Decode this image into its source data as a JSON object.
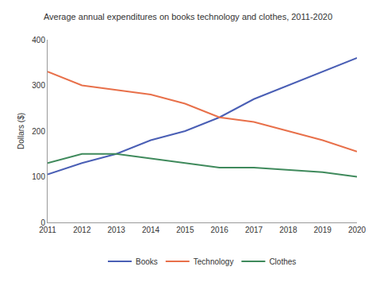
{
  "chart_data": {
    "type": "line",
    "title": "Average annual expenditures on books technology and clothes, 2011-2020",
    "y_label": "Dollars ($)",
    "categories": [
      "2011",
      "2012",
      "2013",
      "2014",
      "2015",
      "2016",
      "2017",
      "2018",
      "2019",
      "2020"
    ],
    "series": [
      {
        "name": "Books",
        "color": "#4a5fb5",
        "values": [
          105,
          130,
          150,
          180,
          200,
          230,
          270,
          300,
          330,
          360
        ]
      },
      {
        "name": "Technology",
        "color": "#e8704a",
        "values": [
          330,
          300,
          290,
          280,
          260,
          230,
          220,
          200,
          180,
          155
        ]
      },
      {
        "name": "Clothes",
        "color": "#3f8a5c",
        "values": [
          130,
          150,
          150,
          140,
          130,
          120,
          120,
          115,
          110,
          100
        ]
      }
    ],
    "ylim": [
      0,
      400
    ],
    "yticks": [
      0,
      100,
      200,
      300,
      400
    ],
    "grid": false,
    "legend": "bottom"
  }
}
